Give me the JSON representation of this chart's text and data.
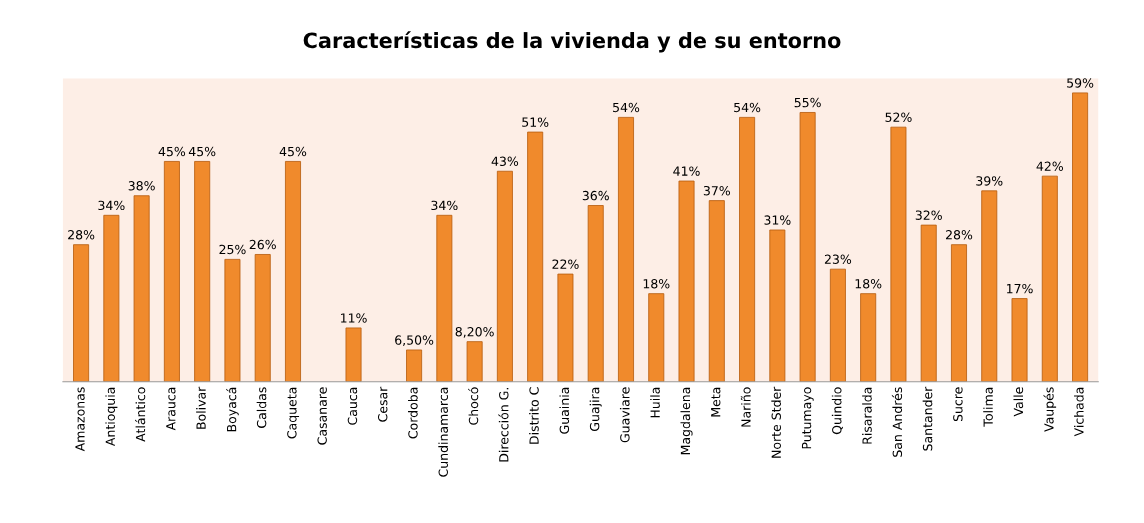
{
  "chart_data": {
    "type": "bar",
    "title": "Características de la vivienda y de su entorno",
    "categories": [
      "Amazonas",
      "Antioquia",
      "Atlántico",
      "Arauca",
      "Bolivar",
      "Boyacá",
      "Caldas",
      "Caqueta",
      "Casanare",
      "Cauca",
      "Cesar",
      "Cordoba",
      "Cundinamarca",
      "Chocó",
      "Dirección G.",
      "Distrito C",
      "Guainia",
      "Guajira",
      "Guaviare",
      "Huila",
      "Magdalena",
      "Meta",
      "Nariño",
      "Norte Stder",
      "Putumayo",
      "Quindio",
      "Risaralda",
      "San Andrés",
      "Santander",
      "Sucre",
      "Tolima",
      "Valle",
      "Vaupés",
      "Vichada"
    ],
    "values": [
      28,
      34,
      38,
      45,
      45,
      25,
      26,
      45,
      null,
      11,
      null,
      6.5,
      34,
      8.2,
      43,
      51,
      22,
      36,
      54,
      18,
      41,
      37,
      54,
      31,
      55,
      23,
      18,
      52,
      32,
      28,
      39,
      17,
      42,
      59
    ],
    "value_labels": [
      "28%",
      "34%",
      "38%",
      "45%",
      "45%",
      "25%",
      "26%",
      "45%",
      null,
      "11%",
      null,
      "6,50%",
      "34%",
      "8,20%",
      "43%",
      "51%",
      "22%",
      "36%",
      "54%",
      "18%",
      "41%",
      "37%",
      "54%",
      "31%",
      "55%",
      "23%",
      "18%",
      "52%",
      "32%",
      "28%",
      "39%",
      "17%",
      "42%",
      "59%"
    ],
    "color": "#f08a2c",
    "grid": false,
    "legend": false
  }
}
